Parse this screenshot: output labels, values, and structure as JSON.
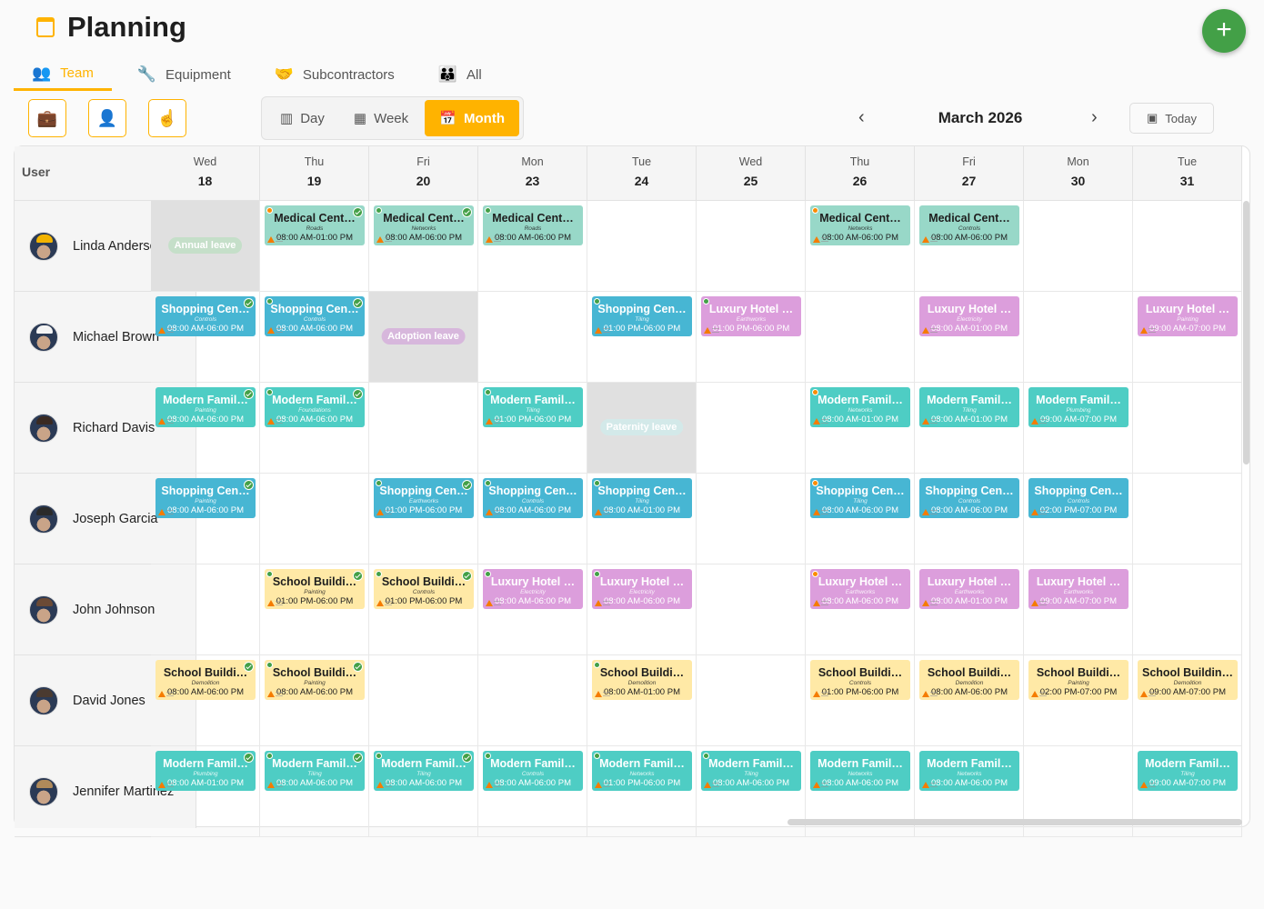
{
  "header": {
    "title": "Planning",
    "calendar_icon": "calendar-icon",
    "add_icon": "plus-icon"
  },
  "tabs": [
    {
      "label": "Team",
      "icon": "team-icon",
      "active": true
    },
    {
      "label": "Equipment",
      "icon": "wrench-icon"
    },
    {
      "label": "Subcontractors",
      "icon": "handshake-icon"
    },
    {
      "label": "All",
      "icon": "group-icon"
    }
  ],
  "filters": [
    "briefcase-icon",
    "person-icon",
    "pointer-icon"
  ],
  "views": [
    {
      "label": "Day",
      "icon": "day-columns-icon"
    },
    {
      "label": "Week",
      "icon": "week-columns-icon"
    },
    {
      "label": "Month",
      "icon": "month-calendar-icon",
      "active": true
    }
  ],
  "period": {
    "label": "March 2026",
    "today": "Today"
  },
  "colors": {
    "accent": "#ffb300",
    "add": "#43a047",
    "Medical": "#98d8c8",
    "Shopping": "#47b6d3",
    "Luxury": "#dc9edc",
    "Modern": "#4ecdc4",
    "School": "#ffe9a6"
  },
  "user_header": "User",
  "days": [
    {
      "n": "Wed",
      "d": "18"
    },
    {
      "n": "Thu",
      "d": "19"
    },
    {
      "n": "Fri",
      "d": "20"
    },
    {
      "n": "Mon",
      "d": "23"
    },
    {
      "n": "Tue",
      "d": "24"
    },
    {
      "n": "Wed",
      "d": "25"
    },
    {
      "n": "Thu",
      "d": "26"
    },
    {
      "n": "Fri",
      "d": "27"
    },
    {
      "n": "Mon",
      "d": "30"
    },
    {
      "n": "Tue",
      "d": "31"
    }
  ],
  "users": [
    {
      "name": "Linda Anderson",
      "hat": "#f2b300",
      "entries": [
        {
          "day": 0,
          "leave": "Annual leave",
          "leave_color": "#c5dfc9"
        },
        {
          "day": 1,
          "p": "Medical",
          "t": "Medical Cent…",
          "s": "Roads",
          "tm": "08:00 AM-01:00 PM",
          "dot": "orange",
          "chk": true
        },
        {
          "day": 2,
          "p": "Medical",
          "t": "Medical Cent…",
          "s": "Networks",
          "tm": "08:00 AM-06:00 PM",
          "dot": "green",
          "chk": true
        },
        {
          "day": 3,
          "p": "Medical",
          "t": "Medical Cent…",
          "s": "Roads",
          "tm": "08:00 AM-06:00 PM",
          "dot": "green"
        },
        {
          "day": 6,
          "p": "Medical",
          "t": "Medical Cent…",
          "s": "Networks",
          "tm": "08:00 AM-06:00 PM",
          "dot": "orange"
        },
        {
          "day": 7,
          "p": "Medical",
          "t": "Medical Cent…",
          "s": "Controls",
          "tm": "08:00 AM-06:00 PM"
        }
      ]
    },
    {
      "name": "Michael Brown",
      "hat": "#f4f4f4",
      "entries": [
        {
          "day": 0,
          "p": "Shopping",
          "t": "Shopping Cen…",
          "s": "Controls",
          "tm": "08:00 AM-06:00 PM",
          "chk": true
        },
        {
          "day": 1,
          "p": "Shopping",
          "t": "Shopping Cen…",
          "s": "Controls",
          "tm": "08:00 AM-06:00 PM",
          "dot": "green",
          "chk": true
        },
        {
          "day": 2,
          "leave": "Adoption leave",
          "leave_color": "#d7b7dc"
        },
        {
          "day": 4,
          "p": "Shopping",
          "t": "Shopping Cen…",
          "s": "Tiling",
          "tm": "01:00 PM-06:00 PM",
          "dot": "green"
        },
        {
          "day": 5,
          "p": "Luxury",
          "t": "Luxury Hotel …",
          "s": "Earthworks",
          "tm": "01:00 PM-06:00 PM",
          "dot": "green"
        },
        {
          "day": 7,
          "p": "Luxury",
          "t": "Luxury Hotel …",
          "s": "Electricity",
          "tm": "08:00 AM-01:00 PM"
        },
        {
          "day": 9,
          "p": "Luxury",
          "t": "Luxury Hotel …",
          "s": "Painting",
          "tm": "09:00 AM-07:00 PM"
        }
      ]
    },
    {
      "name": "Richard Davis",
      "hat": "#3a2a22",
      "entries": [
        {
          "day": 0,
          "p": "Modern",
          "t": "Modern Famil…",
          "s": "Painting",
          "tm": "08:00 AM-06:00 PM",
          "chk": true
        },
        {
          "day": 1,
          "p": "Modern",
          "t": "Modern Famil…",
          "s": "Foundations",
          "tm": "08:00 AM-06:00 PM",
          "dot": "green",
          "chk": true
        },
        {
          "day": 3,
          "p": "Modern",
          "t": "Modern Famil…",
          "s": "Tiling",
          "tm": "01:00 PM-06:00 PM",
          "dot": "green"
        },
        {
          "day": 4,
          "leave": "Paternity leave",
          "leave_color": "#d3e9e9"
        },
        {
          "day": 6,
          "p": "Modern",
          "t": "Modern Famil…",
          "s": "Networks",
          "tm": "08:00 AM-01:00 PM",
          "dot": "orange"
        },
        {
          "day": 7,
          "p": "Modern",
          "t": "Modern Famil…",
          "s": "Tiling",
          "tm": "08:00 AM-01:00 PM"
        },
        {
          "day": 8,
          "p": "Modern",
          "t": "Modern Famil…",
          "s": "Plumbing",
          "tm": "09:00 AM-07:00 PM"
        }
      ]
    },
    {
      "name": "Joseph Garcia",
      "hat": "#2a2a2a",
      "entries": [
        {
          "day": 0,
          "p": "Shopping",
          "t": "Shopping Cen…",
          "s": "Painting",
          "tm": "08:00 AM-06:00 PM",
          "chk": true
        },
        {
          "day": 2,
          "p": "Shopping",
          "t": "Shopping Cen…",
          "s": "Earthworks",
          "tm": "01:00 PM-06:00 PM",
          "dot": "green",
          "chk": true
        },
        {
          "day": 3,
          "p": "Shopping",
          "t": "Shopping Cen…",
          "s": "Controls",
          "tm": "08:00 AM-06:00 PM",
          "dot": "green"
        },
        {
          "day": 4,
          "p": "Shopping",
          "t": "Shopping Cen…",
          "s": "Tiling",
          "tm": "08:00 AM-01:00 PM",
          "dot": "green"
        },
        {
          "day": 6,
          "p": "Shopping",
          "t": "Shopping Cen…",
          "s": "Tiling",
          "tm": "08:00 AM-06:00 PM",
          "dot": "orange"
        },
        {
          "day": 7,
          "p": "Shopping",
          "t": "Shopping Cen…",
          "s": "Controls",
          "tm": "08:00 AM-06:00 PM"
        },
        {
          "day": 8,
          "p": "Shopping",
          "t": "Shopping Cen…",
          "s": "Controls",
          "tm": "02:00 PM-07:00 PM"
        }
      ]
    },
    {
      "name": "John Johnson",
      "hat": "#6b4a35",
      "entries": [
        {
          "day": 1,
          "p": "School",
          "t": "School Buildi…",
          "s": "Painting",
          "tm": "01:00 PM-06:00 PM",
          "dot": "green",
          "chk": true
        },
        {
          "day": 2,
          "p": "School",
          "t": "School Buildi…",
          "s": "Controls",
          "tm": "01:00 PM-06:00 PM",
          "dot": "green",
          "chk": true
        },
        {
          "day": 3,
          "p": "Luxury",
          "t": "Luxury Hotel …",
          "s": "Electricity",
          "tm": "08:00 AM-06:00 PM",
          "dot": "green"
        },
        {
          "day": 4,
          "p": "Luxury",
          "t": "Luxury Hotel …",
          "s": "Electricity",
          "tm": "08:00 AM-06:00 PM",
          "dot": "green"
        },
        {
          "day": 6,
          "p": "Luxury",
          "t": "Luxury Hotel …",
          "s": "Earthworks",
          "tm": "08:00 AM-06:00 PM",
          "dot": "orange"
        },
        {
          "day": 7,
          "p": "Luxury",
          "t": "Luxury Hotel …",
          "s": "Earthworks",
          "tm": "08:00 AM-01:00 PM"
        },
        {
          "day": 8,
          "p": "Luxury",
          "t": "Luxury Hotel …",
          "s": "Earthworks",
          "tm": "09:00 AM-07:00 PM"
        }
      ]
    },
    {
      "name": "David Jones",
      "hat": "#4a3a30",
      "entries": [
        {
          "day": 0,
          "p": "School",
          "t": "School Buildi…",
          "s": "Demolition",
          "tm": "08:00 AM-06:00 PM",
          "chk": true
        },
        {
          "day": 1,
          "p": "School",
          "t": "School Buildi…",
          "s": "Painting",
          "tm": "08:00 AM-06:00 PM",
          "dot": "green",
          "chk": true
        },
        {
          "day": 4,
          "p": "School",
          "t": "School Buildi…",
          "s": "Demolition",
          "tm": "08:00 AM-01:00 PM",
          "dot": "green"
        },
        {
          "day": 6,
          "p": "School",
          "t": "School Buildi…",
          "s": "Controls",
          "tm": "01:00 PM-06:00 PM"
        },
        {
          "day": 7,
          "p": "School",
          "t": "School Buildi…",
          "s": "Demolition",
          "tm": "08:00 AM-06:00 PM"
        },
        {
          "day": 8,
          "p": "School",
          "t": "School Buildi…",
          "s": "Painting",
          "tm": "02:00 PM-07:00 PM"
        },
        {
          "day": 9,
          "p": "School",
          "t": "School Buildin…",
          "s": "Demolition",
          "tm": "09:00 AM-07:00 PM"
        }
      ]
    },
    {
      "name": "Jennifer Martinez",
      "hat": "#b08a5a",
      "entries": [
        {
          "day": 0,
          "p": "Modern",
          "t": "Modern Famil…",
          "s": "Plumbing",
          "tm": "08:00 AM-01:00 PM",
          "chk": true
        },
        {
          "day": 1,
          "p": "Modern",
          "t": "Modern Famil…",
          "s": "Tiling",
          "tm": "08:00 AM-06:00 PM",
          "dot": "green",
          "chk": true
        },
        {
          "day": 2,
          "p": "Modern",
          "t": "Modern Famil…",
          "s": "Tiling",
          "tm": "08:00 AM-06:00 PM",
          "dot": "green",
          "chk": true
        },
        {
          "day": 3,
          "p": "Modern",
          "t": "Modern Famil…",
          "s": "Controls",
          "tm": "08:00 AM-06:00 PM",
          "dot": "green"
        },
        {
          "day": 4,
          "p": "Modern",
          "t": "Modern Famil…",
          "s": "Networks",
          "tm": "01:00 PM-06:00 PM",
          "dot": "green"
        },
        {
          "day": 5,
          "p": "Modern",
          "t": "Modern Famil…",
          "s": "Tiling",
          "tm": "08:00 AM-06:00 PM",
          "dot": "green"
        },
        {
          "day": 6,
          "p": "Modern",
          "t": "Modern Famil…",
          "s": "Networks",
          "tm": "08:00 AM-06:00 PM"
        },
        {
          "day": 7,
          "p": "Modern",
          "t": "Modern Famil…",
          "s": "Networks",
          "tm": "08:00 AM-06:00 PM"
        },
        {
          "day": 9,
          "p": "Modern",
          "t": "Modern Famil…",
          "s": "Tiling",
          "tm": "09:00 AM-07:00 PM"
        }
      ]
    }
  ]
}
